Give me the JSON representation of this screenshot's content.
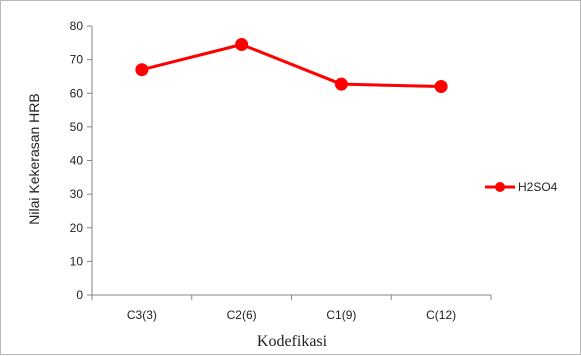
{
  "chart_data": {
    "type": "line",
    "categories": [
      "C3(3)",
      "C2(6)",
      "C1(9)",
      "C(12)"
    ],
    "series": [
      {
        "name": "H2SO4",
        "values": [
          67,
          74.5,
          62.7,
          62
        ],
        "color": "#ff0000"
      }
    ],
    "xlabel": "Kodefikasi",
    "ylabel": "Nilai Kekerasan HRB",
    "ylim": [
      0,
      80
    ],
    "yticks": [
      "0",
      "10",
      "20",
      "30",
      "40",
      "50",
      "60",
      "70",
      "80"
    ],
    "grid": false,
    "legend_position": "right"
  }
}
